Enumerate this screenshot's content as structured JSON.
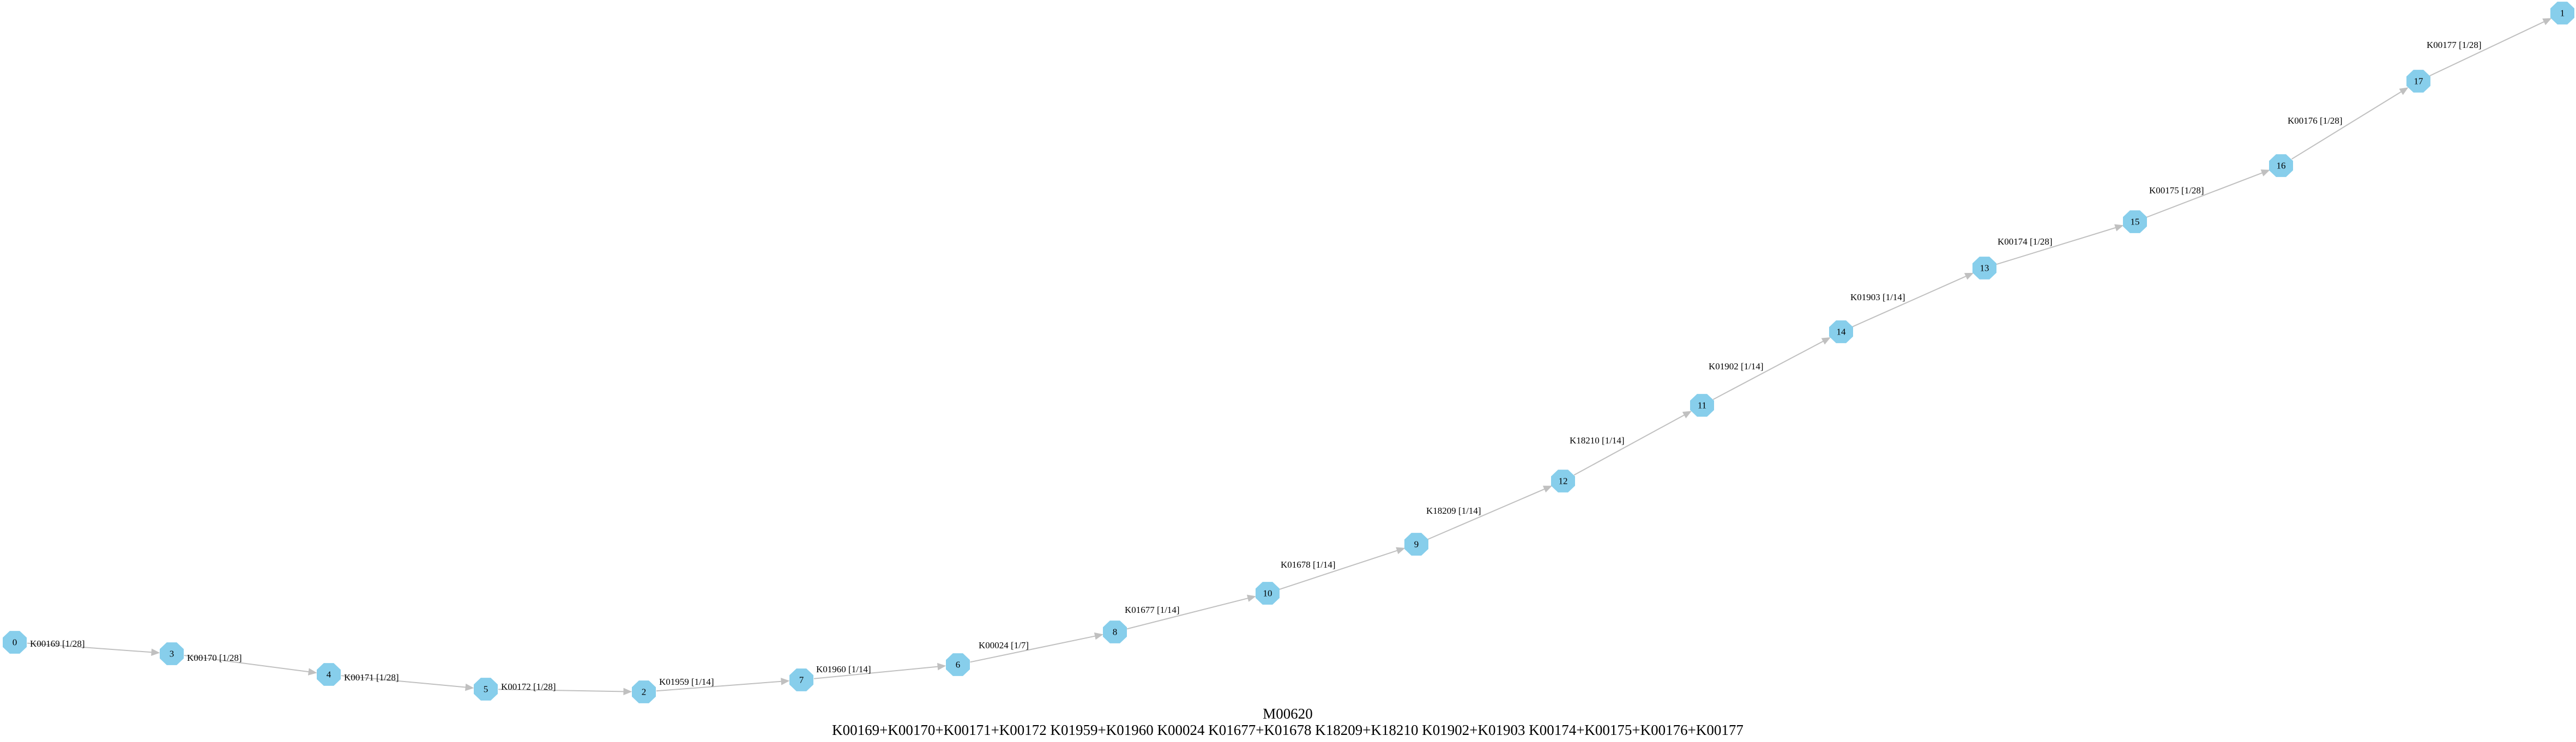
{
  "diagram": {
    "title": "M00620",
    "subtitle": "K00169+K00170+K00171+K00172 K01959+K01960 K00024 K01677+K01678 K18209+K18210 K01902+K01903 K00174+K00175+K00176+K00177",
    "colors": {
      "node_fill": "#87ceeb",
      "edge": "#c0c0c0",
      "text": "#000000"
    },
    "nodes": [
      {
        "id": "0",
        "label": "0"
      },
      {
        "id": "3",
        "label": "3"
      },
      {
        "id": "4",
        "label": "4"
      },
      {
        "id": "5",
        "label": "5"
      },
      {
        "id": "2",
        "label": "2"
      },
      {
        "id": "7",
        "label": "7"
      },
      {
        "id": "6",
        "label": "6"
      },
      {
        "id": "8",
        "label": "8"
      },
      {
        "id": "10",
        "label": "10"
      },
      {
        "id": "9",
        "label": "9"
      },
      {
        "id": "12",
        "label": "12"
      },
      {
        "id": "11",
        "label": "11"
      },
      {
        "id": "14",
        "label": "14"
      },
      {
        "id": "13",
        "label": "13"
      },
      {
        "id": "15",
        "label": "15"
      },
      {
        "id": "16",
        "label": "16"
      },
      {
        "id": "17",
        "label": "17"
      },
      {
        "id": "1",
        "label": "1"
      }
    ],
    "edges": [
      {
        "from": "0",
        "to": "3",
        "label": "K00169 [1/28]"
      },
      {
        "from": "3",
        "to": "4",
        "label": "K00170 [1/28]"
      },
      {
        "from": "4",
        "to": "5",
        "label": "K00171 [1/28]"
      },
      {
        "from": "5",
        "to": "2",
        "label": "K00172 [1/28]"
      },
      {
        "from": "2",
        "to": "7",
        "label": "K01959 [1/14]"
      },
      {
        "from": "7",
        "to": "6",
        "label": "K01960 [1/14]"
      },
      {
        "from": "6",
        "to": "8",
        "label": "K00024 [1/7]"
      },
      {
        "from": "8",
        "to": "10",
        "label": "K01677 [1/14]"
      },
      {
        "from": "10",
        "to": "9",
        "label": "K01678 [1/14]"
      },
      {
        "from": "9",
        "to": "12",
        "label": "K18209 [1/14]"
      },
      {
        "from": "12",
        "to": "11",
        "label": "K18210 [1/14]"
      },
      {
        "from": "11",
        "to": "14",
        "label": "K01902 [1/14]"
      },
      {
        "from": "14",
        "to": "13",
        "label": "K01903 [1/14]"
      },
      {
        "from": "13",
        "to": "15",
        "label": "K00174 [1/28]"
      },
      {
        "from": "15",
        "to": "16",
        "label": "K00175 [1/28]"
      },
      {
        "from": "16",
        "to": "17",
        "label": "K00176 [1/28]"
      },
      {
        "from": "17",
        "to": "1",
        "label": "K00177 [1/28]"
      }
    ]
  }
}
